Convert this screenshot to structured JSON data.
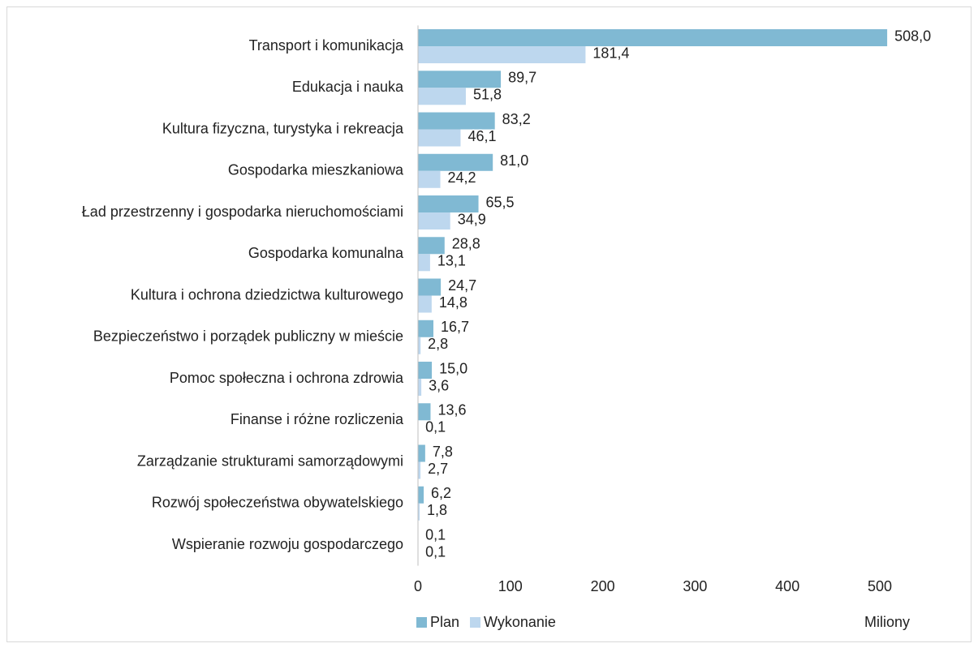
{
  "chart_data": {
    "type": "bar",
    "orientation": "horizontal",
    "categories": [
      "Transport i komunikacja",
      "Edukacja i nauka",
      "Kultura fizyczna, turystyka i rekreacja",
      "Gospodarka mieszkaniowa",
      "Ład przestrzenny i gospodarka nieruchomościami",
      "Gospodarka komunalna",
      "Kultura i ochrona dziedzictwa kulturowego",
      "Bezpieczeństwo i porządek publiczny w mieście",
      "Pomoc społeczna i ochrona zdrowia",
      "Finanse i różne rozliczenia",
      "Zarządzanie strukturami samorządowymi",
      "Rozwój społeczeństwa obywatelskiego",
      "Wspieranie rozwoju gospodarczego"
    ],
    "series": [
      {
        "name": "Plan",
        "color": "#80b9d3",
        "values": [
          508.0,
          89.7,
          83.2,
          81.0,
          65.5,
          28.8,
          24.7,
          16.7,
          15.0,
          13.6,
          7.8,
          6.2,
          0.1
        ],
        "value_labels": [
          "508,0",
          "89,7",
          "83,2",
          "81,0",
          "65,5",
          "28,8",
          "24,7",
          "16,7",
          "15,0",
          "13,6",
          "7,8",
          "6,2",
          "0,1"
        ]
      },
      {
        "name": "Wykonanie",
        "color": "#bdd7ee",
        "values": [
          181.4,
          51.8,
          46.1,
          24.2,
          34.9,
          13.1,
          14.8,
          2.8,
          3.6,
          0.1,
          2.7,
          1.8,
          0.1
        ],
        "value_labels": [
          "181,4",
          "51,8",
          "46,1",
          "24,2",
          "34,9",
          "13,1",
          "14,8",
          "2,8",
          "3,6",
          "0,1",
          "2,7",
          "1,8",
          "0,1"
        ]
      }
    ],
    "xlim": [
      0,
      550
    ],
    "xticks": [
      0,
      100,
      200,
      300,
      400,
      500
    ],
    "x_label": "Miliony",
    "legend": "bottom-left"
  }
}
